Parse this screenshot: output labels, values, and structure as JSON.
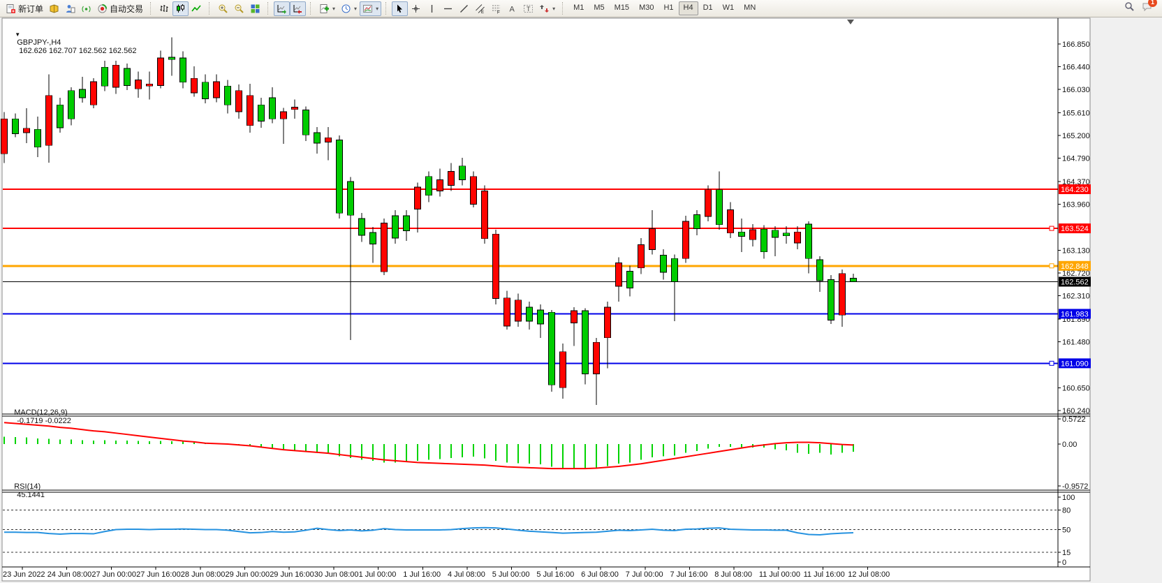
{
  "toolbar": {
    "groups": [
      {
        "name": "trade-group",
        "buttons": [
          {
            "name": "new-order-button",
            "icon": "new-order",
            "label": "新订单"
          },
          {
            "name": "market-book-button",
            "icon": "book"
          },
          {
            "name": "profile-button",
            "icon": "person"
          },
          {
            "name": "signal-button",
            "icon": "signal"
          },
          {
            "name": "autotrade-button",
            "icon": "autotrade",
            "label": "自动交易"
          }
        ]
      },
      {
        "name": "chart-type-group",
        "buttons": [
          {
            "name": "bar-chart-button",
            "icon": "bars"
          },
          {
            "name": "candlestick-button",
            "icon": "candles",
            "pressed": true
          },
          {
            "name": "line-chart-button",
            "icon": "line"
          }
        ]
      },
      {
        "name": "zoom-group",
        "buttons": [
          {
            "name": "zoom-in-button",
            "icon": "zoom-in"
          },
          {
            "name": "zoom-out-button",
            "icon": "zoom-out"
          },
          {
            "name": "tile-windows-button",
            "icon": "tile"
          }
        ]
      },
      {
        "name": "scroll-group",
        "buttons": [
          {
            "name": "auto-scroll-button",
            "icon": "autoscroll",
            "pressed": true
          },
          {
            "name": "chart-shift-button",
            "icon": "shift",
            "pressed": true
          }
        ]
      },
      {
        "name": "objects-group",
        "buttons": [
          {
            "name": "new-chart-button",
            "icon": "new-chart",
            "caret": true
          },
          {
            "name": "period-button",
            "icon": "clock",
            "caret": true
          },
          {
            "name": "template-button",
            "icon": "template",
            "caret": true,
            "pressed": true
          }
        ]
      },
      {
        "name": "drawing-group",
        "buttons": [
          {
            "name": "cursor-button",
            "icon": "cursor",
            "pressed": true
          },
          {
            "name": "crosshair-button",
            "icon": "crosshair"
          },
          {
            "name": "vertical-line-button",
            "icon": "vline"
          },
          {
            "name": "horizontal-line-button",
            "icon": "hline"
          },
          {
            "name": "trendline-button",
            "icon": "trend"
          },
          {
            "name": "channel-button",
            "icon": "channel"
          },
          {
            "name": "fibonacci-button",
            "icon": "fibo"
          },
          {
            "name": "text-button",
            "icon": "text"
          },
          {
            "name": "label-button",
            "icon": "label"
          },
          {
            "name": "arrows-button",
            "icon": "arrows",
            "caret": true
          }
        ]
      }
    ],
    "timeframes": [
      "M1",
      "M5",
      "M15",
      "M30",
      "H1",
      "H4",
      "D1",
      "W1",
      "MN"
    ],
    "selected_timeframe": "H4",
    "right": {
      "search_icon": "search",
      "chat_icon": "chat",
      "chat_badge": "1"
    }
  },
  "quote_bar": {
    "symbol": "GBPJPY-,H4",
    "ohlc": "162.626 162.707 162.562 162.562"
  },
  "chart_data": {
    "type": "candlestick",
    "symbol": "GBPJPY-",
    "period": "H4",
    "colors": {
      "up_body": "#ff0400",
      "down_body": "#00cc00",
      "wick": "#000000",
      "macd_hist": "#00d300",
      "macd_signal": "#ff0000",
      "rsi_line": "#2592e0"
    },
    "price_ticks": [
      "166.850",
      "166.440",
      "166.030",
      "165.610",
      "165.200",
      "164.790",
      "164.370",
      "163.960",
      "163.130",
      "162.720",
      "162.310",
      "161.890",
      "161.480",
      "160.650",
      "160.240"
    ],
    "hlines": [
      {
        "label": "164.230",
        "price": 164.23,
        "color": "#ff0000",
        "width": 2,
        "marker": false,
        "text": "#ffffff"
      },
      {
        "label": "163.524",
        "price": 163.524,
        "color": "#ff0000",
        "width": 2,
        "marker": true,
        "text": "#ffffff"
      },
      {
        "label": "162.848",
        "price": 162.848,
        "color": "#ffa600",
        "width": 3,
        "marker": true,
        "text": "#ffffff"
      },
      {
        "label": "162.562",
        "price": 162.562,
        "color": "#000000",
        "width": 1,
        "marker": false,
        "text": "#ffffff"
      },
      {
        "label": "161.983",
        "price": 161.983,
        "color": "#0000e8",
        "width": 2,
        "marker": false,
        "text": "#ffffff"
      },
      {
        "label": "161.090",
        "price": 161.09,
        "color": "#0000e8",
        "width": 2,
        "marker": true,
        "text": "#ffffff"
      }
    ],
    "candles": [
      [
        "r",
        165.5,
        164.87,
        165.62,
        164.7
      ],
      [
        "g",
        165.5,
        165.23,
        165.6,
        165.17
      ],
      [
        "r",
        165.33,
        165.25,
        165.69,
        165.06
      ],
      [
        "g",
        165.31,
        164.99,
        165.54,
        164.81
      ],
      [
        "r",
        165.92,
        165.02,
        166.3,
        164.71
      ],
      [
        "g",
        165.75,
        165.34,
        165.88,
        165.25
      ],
      [
        "g",
        166.01,
        165.5,
        166.07,
        165.38
      ],
      [
        "g",
        166.03,
        165.88,
        166.26,
        165.79
      ],
      [
        "r",
        166.17,
        165.75,
        166.23,
        165.69
      ],
      [
        "g",
        166.43,
        166.09,
        166.55,
        166.0
      ],
      [
        "r",
        166.47,
        166.07,
        166.55,
        165.95
      ],
      [
        "g",
        166.41,
        166.1,
        166.5,
        166.02
      ],
      [
        "r",
        166.2,
        166.04,
        166.35,
        165.88
      ],
      [
        "r",
        166.13,
        166.09,
        166.35,
        165.85
      ],
      [
        "r",
        166.6,
        166.1,
        166.73,
        166.05
      ],
      [
        "g",
        166.61,
        166.57,
        166.97,
        166.28
      ],
      [
        "g",
        166.6,
        166.16,
        166.72,
        166.05
      ],
      [
        "r",
        166.23,
        165.97,
        166.45,
        165.9
      ],
      [
        "g",
        166.16,
        165.86,
        166.3,
        165.78
      ],
      [
        "r",
        166.17,
        165.88,
        166.3,
        165.8
      ],
      [
        "g",
        166.09,
        165.75,
        166.2,
        165.6
      ],
      [
        "r",
        166.01,
        165.63,
        166.12,
        165.5
      ],
      [
        "r",
        165.92,
        165.38,
        166.13,
        165.25
      ],
      [
        "g",
        165.75,
        165.46,
        165.88,
        165.34
      ],
      [
        "g",
        165.88,
        165.5,
        166.07,
        165.42
      ],
      [
        "r",
        165.63,
        165.5,
        165.7,
        165.05
      ],
      [
        "r",
        165.71,
        165.67,
        165.85,
        165.5
      ],
      [
        "g",
        165.66,
        165.21,
        165.72,
        165.1
      ],
      [
        "g",
        165.25,
        165.06,
        165.35,
        164.87
      ],
      [
        "r",
        165.16,
        165.08,
        165.35,
        164.75
      ],
      [
        "g",
        165.12,
        163.8,
        165.2,
        163.7
      ],
      [
        "g",
        164.37,
        163.76,
        164.45,
        161.51
      ],
      [
        "g",
        163.7,
        163.4,
        163.8,
        163.28
      ],
      [
        "g",
        163.45,
        163.24,
        163.55,
        162.9
      ],
      [
        "r",
        163.62,
        162.74,
        163.7,
        162.68
      ],
      [
        "g",
        163.75,
        163.35,
        163.85,
        163.25
      ],
      [
        "g",
        163.75,
        163.48,
        163.85,
        163.3
      ],
      [
        "r",
        164.27,
        163.87,
        164.35,
        163.45
      ],
      [
        "g",
        164.46,
        164.12,
        164.55,
        164.0
      ],
      [
        "r",
        164.4,
        164.2,
        164.6,
        164.1
      ],
      [
        "r",
        164.55,
        164.3,
        164.7,
        164.2
      ],
      [
        "g",
        164.65,
        164.4,
        164.8,
        164.3
      ],
      [
        "r",
        164.46,
        163.96,
        164.55,
        163.9
      ],
      [
        "r",
        164.2,
        163.34,
        164.3,
        163.25
      ],
      [
        "r",
        163.42,
        162.26,
        163.5,
        162.15
      ],
      [
        "r",
        162.27,
        161.76,
        162.4,
        161.7
      ],
      [
        "r",
        162.23,
        161.85,
        162.35,
        161.75
      ],
      [
        "g",
        162.1,
        161.85,
        162.2,
        161.7
      ],
      [
        "g",
        162.05,
        161.8,
        162.15,
        161.55
      ],
      [
        "g",
        162.01,
        160.7,
        162.05,
        160.58
      ],
      [
        "r",
        161.3,
        160.65,
        161.45,
        160.45
      ],
      [
        "r",
        162.04,
        161.82,
        162.1,
        161.4
      ],
      [
        "g",
        162.04,
        160.9,
        162.08,
        160.71
      ],
      [
        "r",
        161.47,
        160.9,
        161.55,
        160.34
      ],
      [
        "r",
        162.1,
        161.55,
        162.2,
        161.0
      ],
      [
        "r",
        162.9,
        162.48,
        163.0,
        162.2
      ],
      [
        "g",
        162.75,
        162.45,
        162.85,
        162.3
      ],
      [
        "r",
        163.23,
        162.81,
        163.35,
        162.7
      ],
      [
        "r",
        163.52,
        163.14,
        163.85,
        163.05
      ],
      [
        "g",
        163.04,
        162.73,
        163.15,
        162.6
      ],
      [
        "g",
        162.98,
        162.56,
        163.05,
        161.85
      ],
      [
        "r",
        163.65,
        162.98,
        163.75,
        162.9
      ],
      [
        "g",
        163.77,
        163.52,
        163.85,
        163.4
      ],
      [
        "r",
        164.22,
        163.74,
        164.3,
        163.65
      ],
      [
        "g",
        164.22,
        163.59,
        164.55,
        163.5
      ],
      [
        "r",
        163.86,
        163.44,
        164.0,
        163.35
      ],
      [
        "g",
        163.46,
        163.38,
        163.7,
        163.1
      ],
      [
        "r",
        163.5,
        163.32,
        163.6,
        163.2
      ],
      [
        "g",
        163.51,
        163.1,
        163.58,
        162.98
      ],
      [
        "g",
        163.49,
        163.36,
        163.56,
        163.02
      ],
      [
        "g",
        163.44,
        163.39,
        163.56,
        163.25
      ],
      [
        "r",
        163.46,
        163.26,
        163.56,
        163.15
      ],
      [
        "g",
        163.6,
        162.98,
        163.65,
        162.71
      ],
      [
        "g",
        162.96,
        162.58,
        163.02,
        162.38
      ],
      [
        "g",
        162.6,
        161.87,
        162.68,
        161.8
      ],
      [
        "r",
        162.71,
        161.96,
        162.78,
        161.75
      ],
      [
        "g",
        162.626,
        162.562,
        162.707,
        162.562
      ]
    ],
    "macd": {
      "label": "MACD(12,26,9)",
      "values_text": "-0.1719 -0.0222",
      "axis": [
        "0.5722",
        "0.00",
        "-0.9572"
      ],
      "histogram": [
        0.17,
        0.16,
        0.15,
        0.13,
        0.12,
        0.1,
        0.1,
        0.09,
        0.08,
        0.09,
        0.08,
        0.08,
        0.07,
        0.06,
        0.07,
        0.06,
        0.06,
        0.05,
        0.03,
        0.02,
        0.0,
        -0.02,
        -0.05,
        -0.08,
        -0.1,
        -0.13,
        -0.15,
        -0.16,
        -0.18,
        -0.2,
        -0.28,
        -0.32,
        -0.36,
        -0.38,
        -0.42,
        -0.42,
        -0.41,
        -0.38,
        -0.36,
        -0.34,
        -0.32,
        -0.3,
        -0.29,
        -0.33,
        -0.38,
        -0.42,
        -0.44,
        -0.45,
        -0.46,
        -0.52,
        -0.55,
        -0.55,
        -0.56,
        -0.55,
        -0.5,
        -0.45,
        -0.42,
        -0.36,
        -0.3,
        -0.28,
        -0.26,
        -0.2,
        -0.16,
        -0.1,
        -0.06,
        -0.06,
        -0.07,
        -0.08,
        -0.08,
        -0.12,
        -0.14,
        -0.2,
        -0.22,
        -0.2,
        -0.24,
        -0.2,
        -0.1719
      ],
      "signal": [
        0.49,
        0.47,
        0.45,
        0.43,
        0.41,
        0.38,
        0.36,
        0.33,
        0.3,
        0.28,
        0.25,
        0.22,
        0.19,
        0.16,
        0.13,
        0.1,
        0.07,
        0.05,
        0.02,
        0.01,
        0.0,
        -0.02,
        -0.04,
        -0.07,
        -0.1,
        -0.13,
        -0.15,
        -0.17,
        -0.19,
        -0.21,
        -0.24,
        -0.27,
        -0.3,
        -0.33,
        -0.36,
        -0.38,
        -0.4,
        -0.42,
        -0.43,
        -0.44,
        -0.45,
        -0.46,
        -0.47,
        -0.48,
        -0.5,
        -0.52,
        -0.53,
        -0.54,
        -0.55,
        -0.56,
        -0.56,
        -0.56,
        -0.56,
        -0.55,
        -0.53,
        -0.51,
        -0.48,
        -0.45,
        -0.41,
        -0.37,
        -0.33,
        -0.29,
        -0.25,
        -0.21,
        -0.17,
        -0.13,
        -0.09,
        -0.05,
        -0.02,
        0.01,
        0.03,
        0.04,
        0.04,
        0.03,
        0.01,
        -0.01,
        -0.0222
      ]
    },
    "rsi": {
      "label": "RSI(14)",
      "value_text": "45.1441",
      "axis": [
        "100",
        "80",
        "50",
        "15",
        "0"
      ],
      "dashed_levels": [
        80,
        50,
        15
      ],
      "series": [
        46,
        46,
        45.5,
        45.5,
        44,
        43,
        44,
        44,
        43.5,
        47,
        50,
        50.5,
        50.5,
        50,
        50.5,
        50.5,
        51,
        50.5,
        50,
        50,
        49,
        47,
        45,
        45.5,
        47,
        46,
        46.5,
        49,
        52,
        50,
        48.5,
        49.5,
        48,
        49,
        51.5,
        50,
        49.5,
        49.5,
        49.5,
        49.5,
        50,
        51.5,
        52.5,
        53,
        52.5,
        51,
        49,
        47.5,
        46.5,
        45.5,
        44.5,
        45,
        45.5,
        46,
        47.5,
        49,
        48.5,
        49.5,
        50.5,
        49,
        48.5,
        50.5,
        51,
        52,
        52.5,
        50.5,
        50,
        49.5,
        49.5,
        49,
        49,
        45,
        42.5,
        42,
        43.5,
        44.5,
        45.14
      ],
      "ylim": [
        0,
        100
      ]
    },
    "x_labels": [
      "23 Jun 2022",
      "24 Jun 08:00",
      "27 Jun 00:00",
      "27 Jun 16:00",
      "28 Jun 08:00",
      "29 Jun 00:00",
      "29 Jun 16:00",
      "30 Jun 08:00",
      "1 Jul 00:00",
      "1 Jul 16:00",
      "4 Jul 08:00",
      "5 Jul 00:00",
      "5 Jul 16:00",
      "6 Jul 08:00",
      "7 Jul 00:00",
      "7 Jul 16:00",
      "8 Jul 08:00",
      "11 Jul 00:00",
      "11 Jul 16:00",
      "12 Jul 08:00"
    ]
  }
}
